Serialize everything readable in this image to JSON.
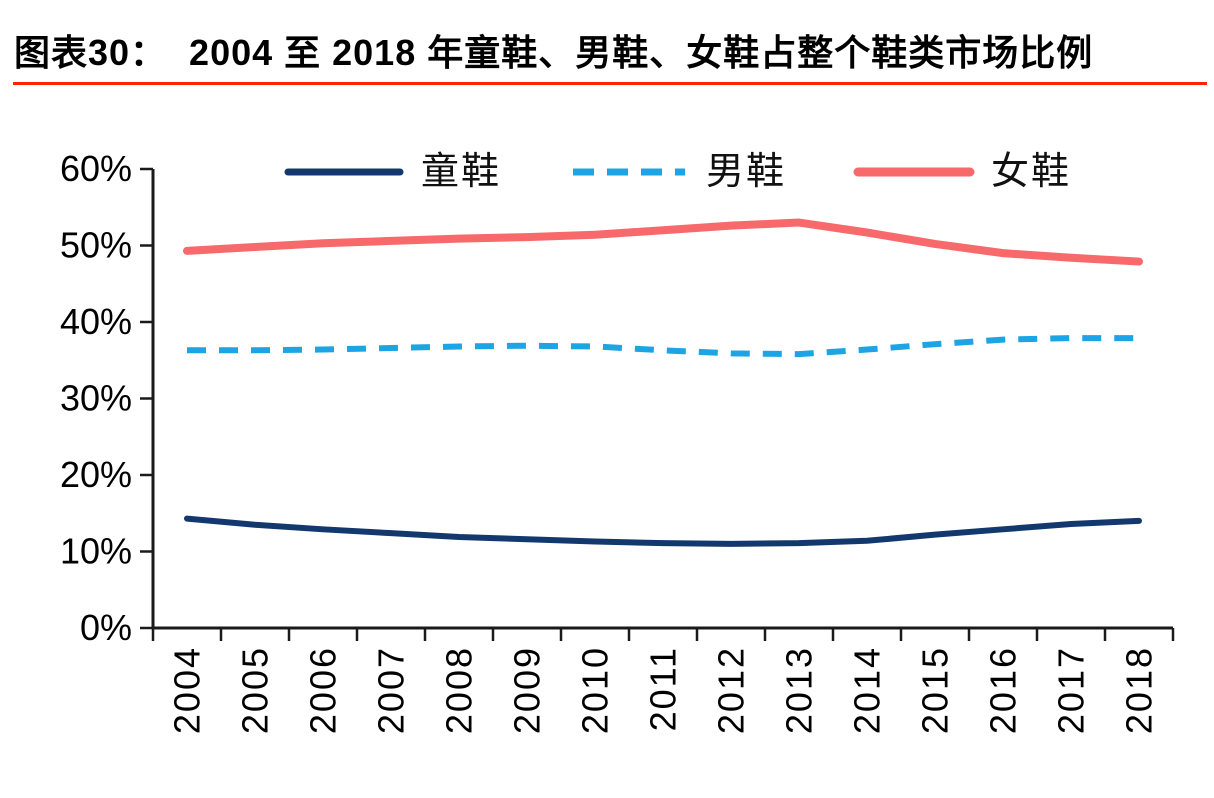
{
  "page": {
    "title": "图表30：  2004 至 2018 年童鞋、男鞋、女鞋占整个鞋类市场比例",
    "underline_color": "#ff2400"
  },
  "chart_data": {
    "type": "line",
    "title": "2004 至 2018 年童鞋、男鞋、女鞋占整个鞋类市场比例",
    "figure_label": "图表30：",
    "categories": [
      "2004",
      "2005",
      "2006",
      "2007",
      "2008",
      "2009",
      "2010",
      "2011",
      "2012",
      "2013",
      "2014",
      "2015",
      "2016",
      "2017",
      "2018"
    ],
    "series": [
      {
        "name": "童鞋",
        "slug": "kids-shoes",
        "color": "#12386e",
        "style": "solid",
        "width": 6,
        "values": [
          14.3,
          13.5,
          12.9,
          12.4,
          11.9,
          11.6,
          11.3,
          11.1,
          11.0,
          11.1,
          11.4,
          12.2,
          12.9,
          13.6,
          14.0
        ]
      },
      {
        "name": "男鞋",
        "slug": "mens-shoes",
        "color": "#1ca4e4",
        "style": "dashed",
        "width": 6,
        "values": [
          36.3,
          36.3,
          36.4,
          36.6,
          36.8,
          36.9,
          36.8,
          36.3,
          35.9,
          35.8,
          36.4,
          37.1,
          37.7,
          37.9,
          37.9
        ]
      },
      {
        "name": "女鞋",
        "slug": "womens-shoes",
        "color": "#f7696b",
        "style": "solid",
        "width": 8,
        "values": [
          49.3,
          49.8,
          50.3,
          50.6,
          50.9,
          51.1,
          51.4,
          52.0,
          52.6,
          53.0,
          51.7,
          50.2,
          49.0,
          48.4,
          47.9
        ]
      }
    ],
    "y_axis": {
      "min": 0,
      "max": 60,
      "step": 10,
      "tick_labels": [
        "0%",
        "10%",
        "20%",
        "30%",
        "40%",
        "50%",
        "60%"
      ]
    },
    "axis_color": "#1a1a1a",
    "x_label_rotation": -90,
    "legend_position": "top",
    "grid": false,
    "ylim": [
      0,
      60
    ]
  }
}
